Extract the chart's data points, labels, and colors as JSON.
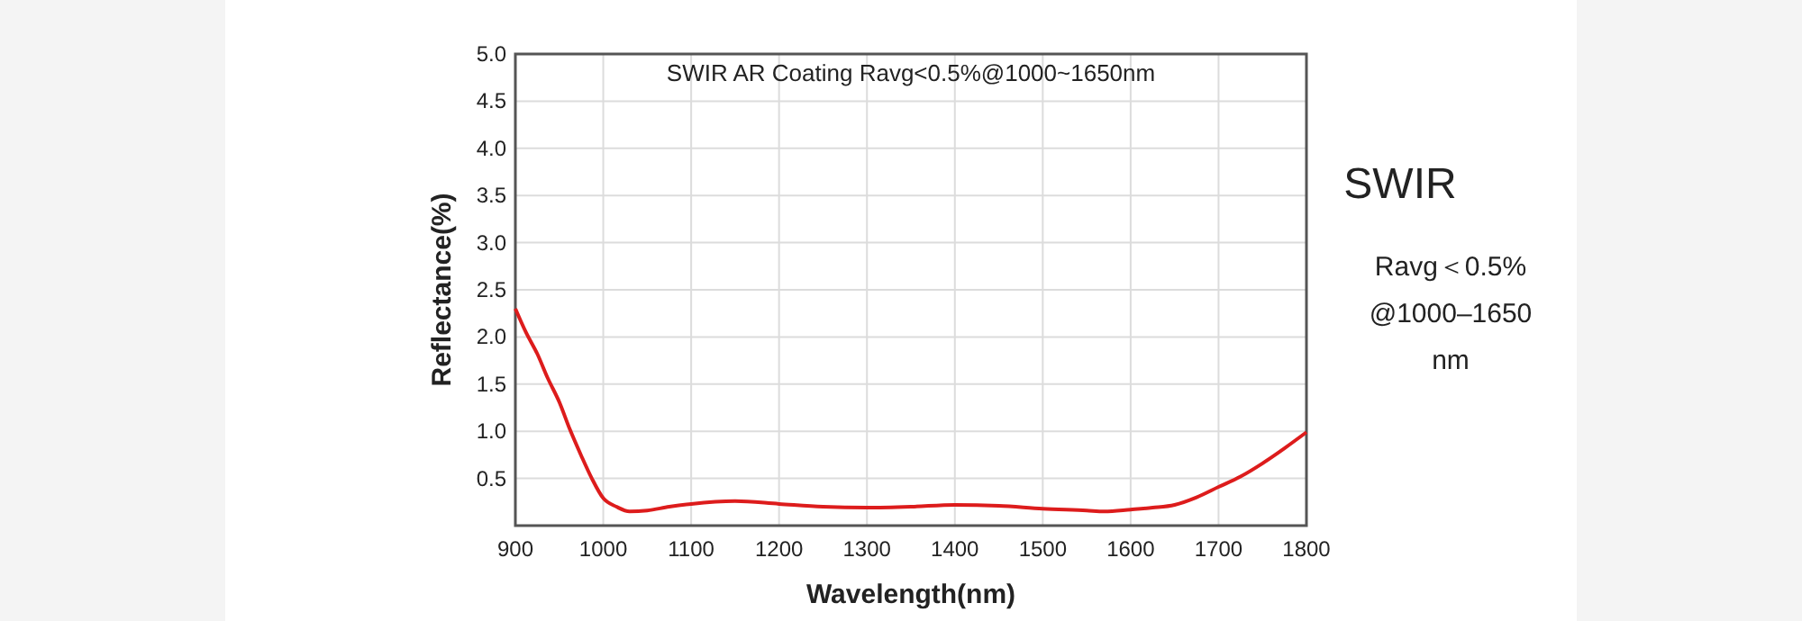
{
  "chart_data": {
    "type": "line",
    "title": "SWIR AR Coating Ravg<0.5%@1000~1650nm",
    "xlabel": "Wavelength(nm)",
    "ylabel": "Reflectance(%)",
    "annotations": [
      "SWIR",
      "Ravg＜0.5%\n@1000–1650\nnm"
    ],
    "x": [
      900,
      912,
      925,
      937,
      950,
      962,
      975,
      987,
      1000,
      1015,
      1030,
      1050,
      1075,
      1100,
      1150,
      1200,
      1250,
      1300,
      1350,
      1400,
      1450,
      1500,
      1550,
      1570,
      1600,
      1625,
      1650,
      1675,
      1700,
      1725,
      1750,
      1775,
      1800
    ],
    "series": [
      {
        "color": "#dd1c1c",
        "values": [
          2.3,
          2.05,
          1.82,
          1.56,
          1.31,
          1.02,
          0.74,
          0.5,
          0.29,
          0.2,
          0.15,
          0.16,
          0.2,
          0.23,
          0.26,
          0.23,
          0.2,
          0.19,
          0.2,
          0.22,
          0.21,
          0.18,
          0.16,
          0.15,
          0.17,
          0.19,
          0.22,
          0.3,
          0.41,
          0.52,
          0.66,
          0.82,
          0.99
        ]
      }
    ],
    "xlim": [
      900,
      1800
    ],
    "xticks": [
      900,
      1000,
      1100,
      1200,
      1300,
      1400,
      1500,
      1600,
      1700,
      1800
    ],
    "ylim": [
      0,
      5
    ],
    "yticks": [
      0.5,
      {
        "value": 1,
        "label": "1.0"
      },
      1.5,
      {
        "value": 2,
        "label": "2.0"
      },
      2.5,
      {
        "value": 3,
        "label": "3.0"
      },
      3.5,
      {
        "value": 4,
        "label": "4.0"
      },
      4.5,
      {
        "value": 5,
        "label": "5.0"
      }
    ],
    "grid": true,
    "marker": "none",
    "line_style": "solid"
  }
}
